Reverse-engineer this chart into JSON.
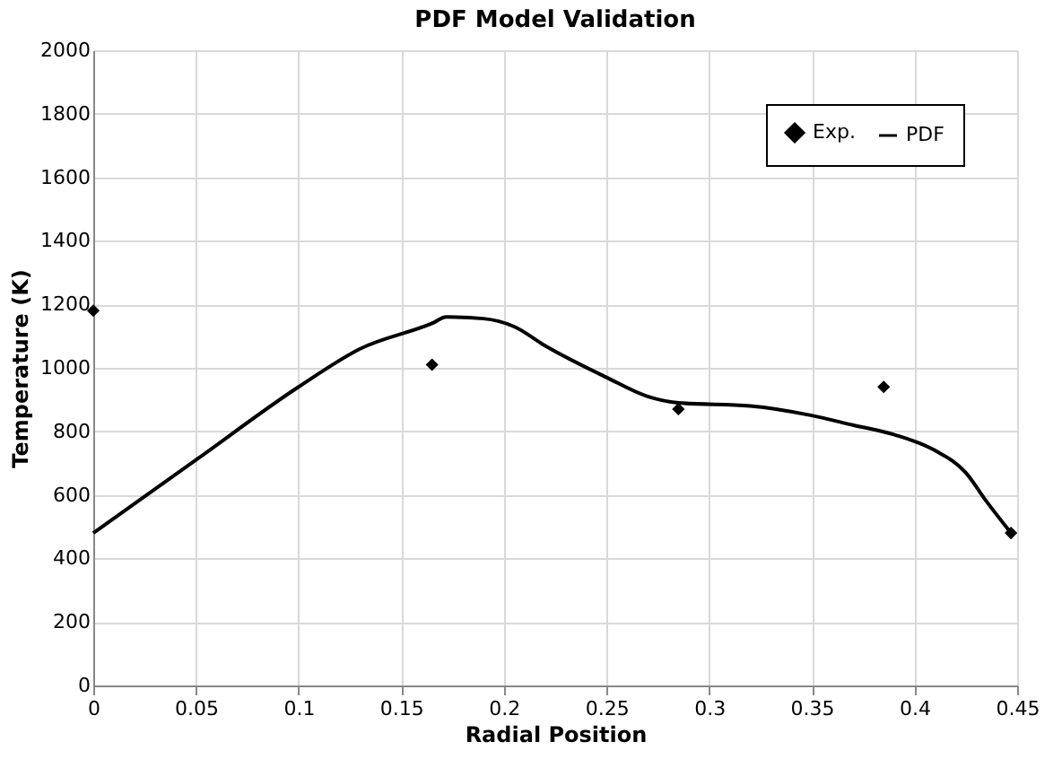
{
  "chart_data": {
    "type": "line",
    "title": "PDF Model Validation",
    "xlabel": "Radial Position",
    "ylabel": "Temperature (K)",
    "xlim": [
      0,
      0.45
    ],
    "xticks": [
      0,
      0.05,
      0.1,
      0.15,
      0.2,
      0.25,
      0.3,
      0.35,
      0.4,
      0.45
    ],
    "ylim": [
      0,
      2000
    ],
    "yticks": [
      0,
      200,
      400,
      600,
      800,
      1000,
      1200,
      1400,
      1600,
      1800,
      2000
    ],
    "grid": true,
    "legend": "top right",
    "series": [
      {
        "name": "Exp.",
        "type": "scatter",
        "marker": "diamond",
        "color": "#000000",
        "x": [
          0,
          0.165,
          0.285,
          0.385,
          0.447
        ],
        "values": [
          1180,
          1010,
          870,
          940,
          480
        ]
      },
      {
        "name": "PDF",
        "line_style": "solid",
        "color": "#000000",
        "x": [
          0,
          0.05,
          0.1,
          0.13,
          0.165,
          0.172,
          0.19,
          0.205,
          0.22,
          0.25,
          0.27,
          0.285,
          0.32,
          0.35,
          0.37,
          0.39,
          0.41,
          0.425,
          0.435,
          0.447
        ],
        "values": [
          480,
          710,
          940,
          1060,
          1140,
          1160,
          1155,
          1130,
          1070,
          970,
          910,
          890,
          880,
          850,
          820,
          790,
          740,
          670,
          580,
          480
        ]
      }
    ]
  }
}
